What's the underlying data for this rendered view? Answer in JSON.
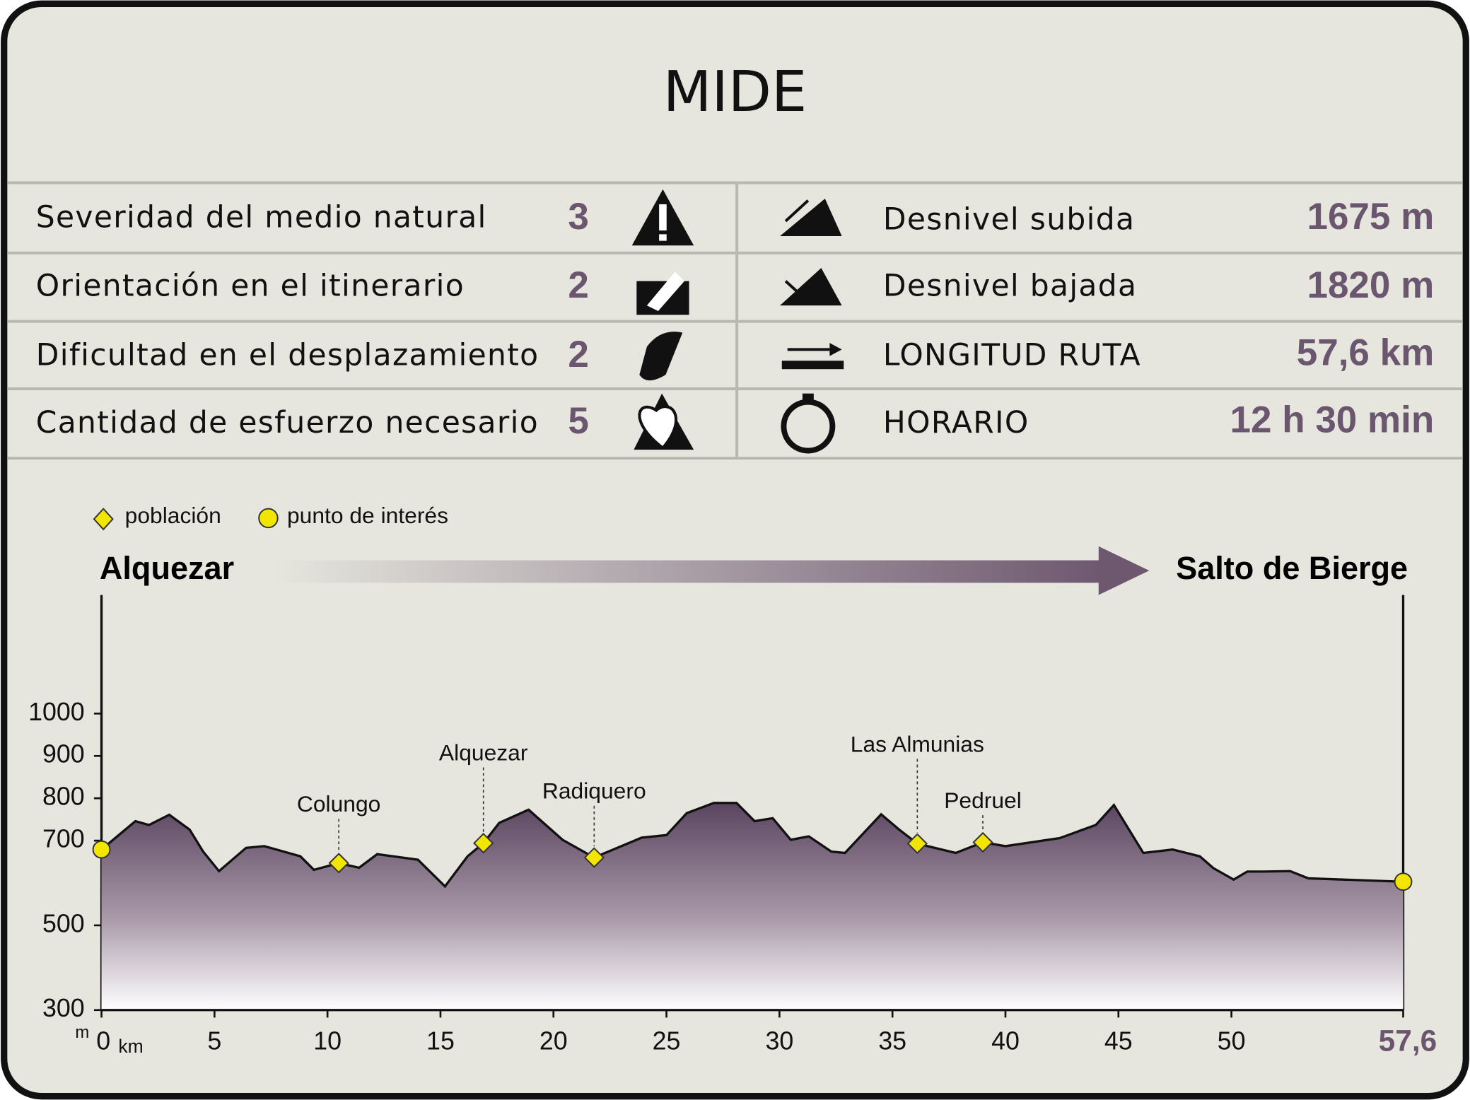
{
  "header": {
    "title": "MIDE"
  },
  "table": {
    "rows": [
      {
        "left_label": "Severidad del medio natural",
        "left_value": 3,
        "right_label": "Desnivel subida",
        "right_value": "1675 m"
      },
      {
        "left_label": "Orientación en el itinerario",
        "left_value": 2,
        "right_label": "Desnivel bajada",
        "right_value": "1820 m"
      },
      {
        "left_label": "Dificultad en el desplazamiento",
        "left_value": 2,
        "right_label": "LONGITUD RUTA",
        "right_value": "57,6 km"
      },
      {
        "left_label": "Cantidad de esfuerzo necesario",
        "left_value": 5,
        "right_label": "HORARIO",
        "right_value": "12 h 30 min"
      }
    ]
  },
  "chart_data": {
    "type": "area",
    "start_label": "Alquezar",
    "end_label": "Salto de Bierge",
    "xlabel": "km",
    "ylabel": "m",
    "xlim": [
      0,
      57.6
    ],
    "ylim": [
      300,
      1280
    ],
    "xticks": [
      0,
      5,
      10,
      15,
      20,
      25,
      30,
      35,
      40,
      45,
      50,
      {
        "value": 57.6,
        "label": "57,6"
      }
    ],
    "yticks": [
      300,
      500,
      700,
      800,
      900,
      1000
    ],
    "series": [
      {
        "color": "#5a4560",
        "x": [
          0,
          1.5,
          2.1,
          3.0,
          3.9,
          4.5,
          5.2,
          6.4,
          7.2,
          8.8,
          9.4,
          10.5,
          11.4,
          12.2,
          14.0,
          15.2,
          16.2,
          16.9,
          17.6,
          18.9,
          20.4,
          21.8,
          23.9,
          25.0,
          25.9,
          27.1,
          28.1,
          28.9,
          29.7,
          30.5,
          31.3,
          32.3,
          32.9,
          34.5,
          35.3,
          36.1,
          37.8,
          39.0,
          40.0,
          42.4,
          44.0,
          44.8,
          46.1,
          47.4,
          48.6,
          49.2,
          50.1,
          50.7,
          51.4,
          52.6,
          53.4,
          57.6
        ],
        "values": [
          679,
          746,
          737,
          761,
          726,
          674,
          628,
          683,
          687,
          663,
          631,
          647,
          636,
          668,
          655,
          592,
          663,
          694,
          742,
          773,
          702,
          660,
          707,
          713,
          765,
          789,
          789,
          746,
          753,
          702,
          710,
          674,
          671,
          762,
          726,
          693,
          671,
          696,
          687,
          706,
          737,
          784,
          671,
          679,
          663,
          635,
          608,
          627,
          627,
          628,
          611,
          603
        ]
      },
      {
        "name": "población",
        "color": "#f2e600",
        "labels": [
          "Colungo",
          "Alquezar",
          "Radiquero",
          "Las Almunias",
          "Pedruel"
        ],
        "x": [
          10.5,
          16.9,
          21.8,
          36.1,
          39.0
        ],
        "values": [
          647,
          694,
          660,
          693,
          696
        ]
      },
      {
        "name": "punto de interés",
        "color": "#f2e600",
        "x": [
          0,
          57.6
        ],
        "values": [
          679,
          603
        ]
      }
    ]
  }
}
